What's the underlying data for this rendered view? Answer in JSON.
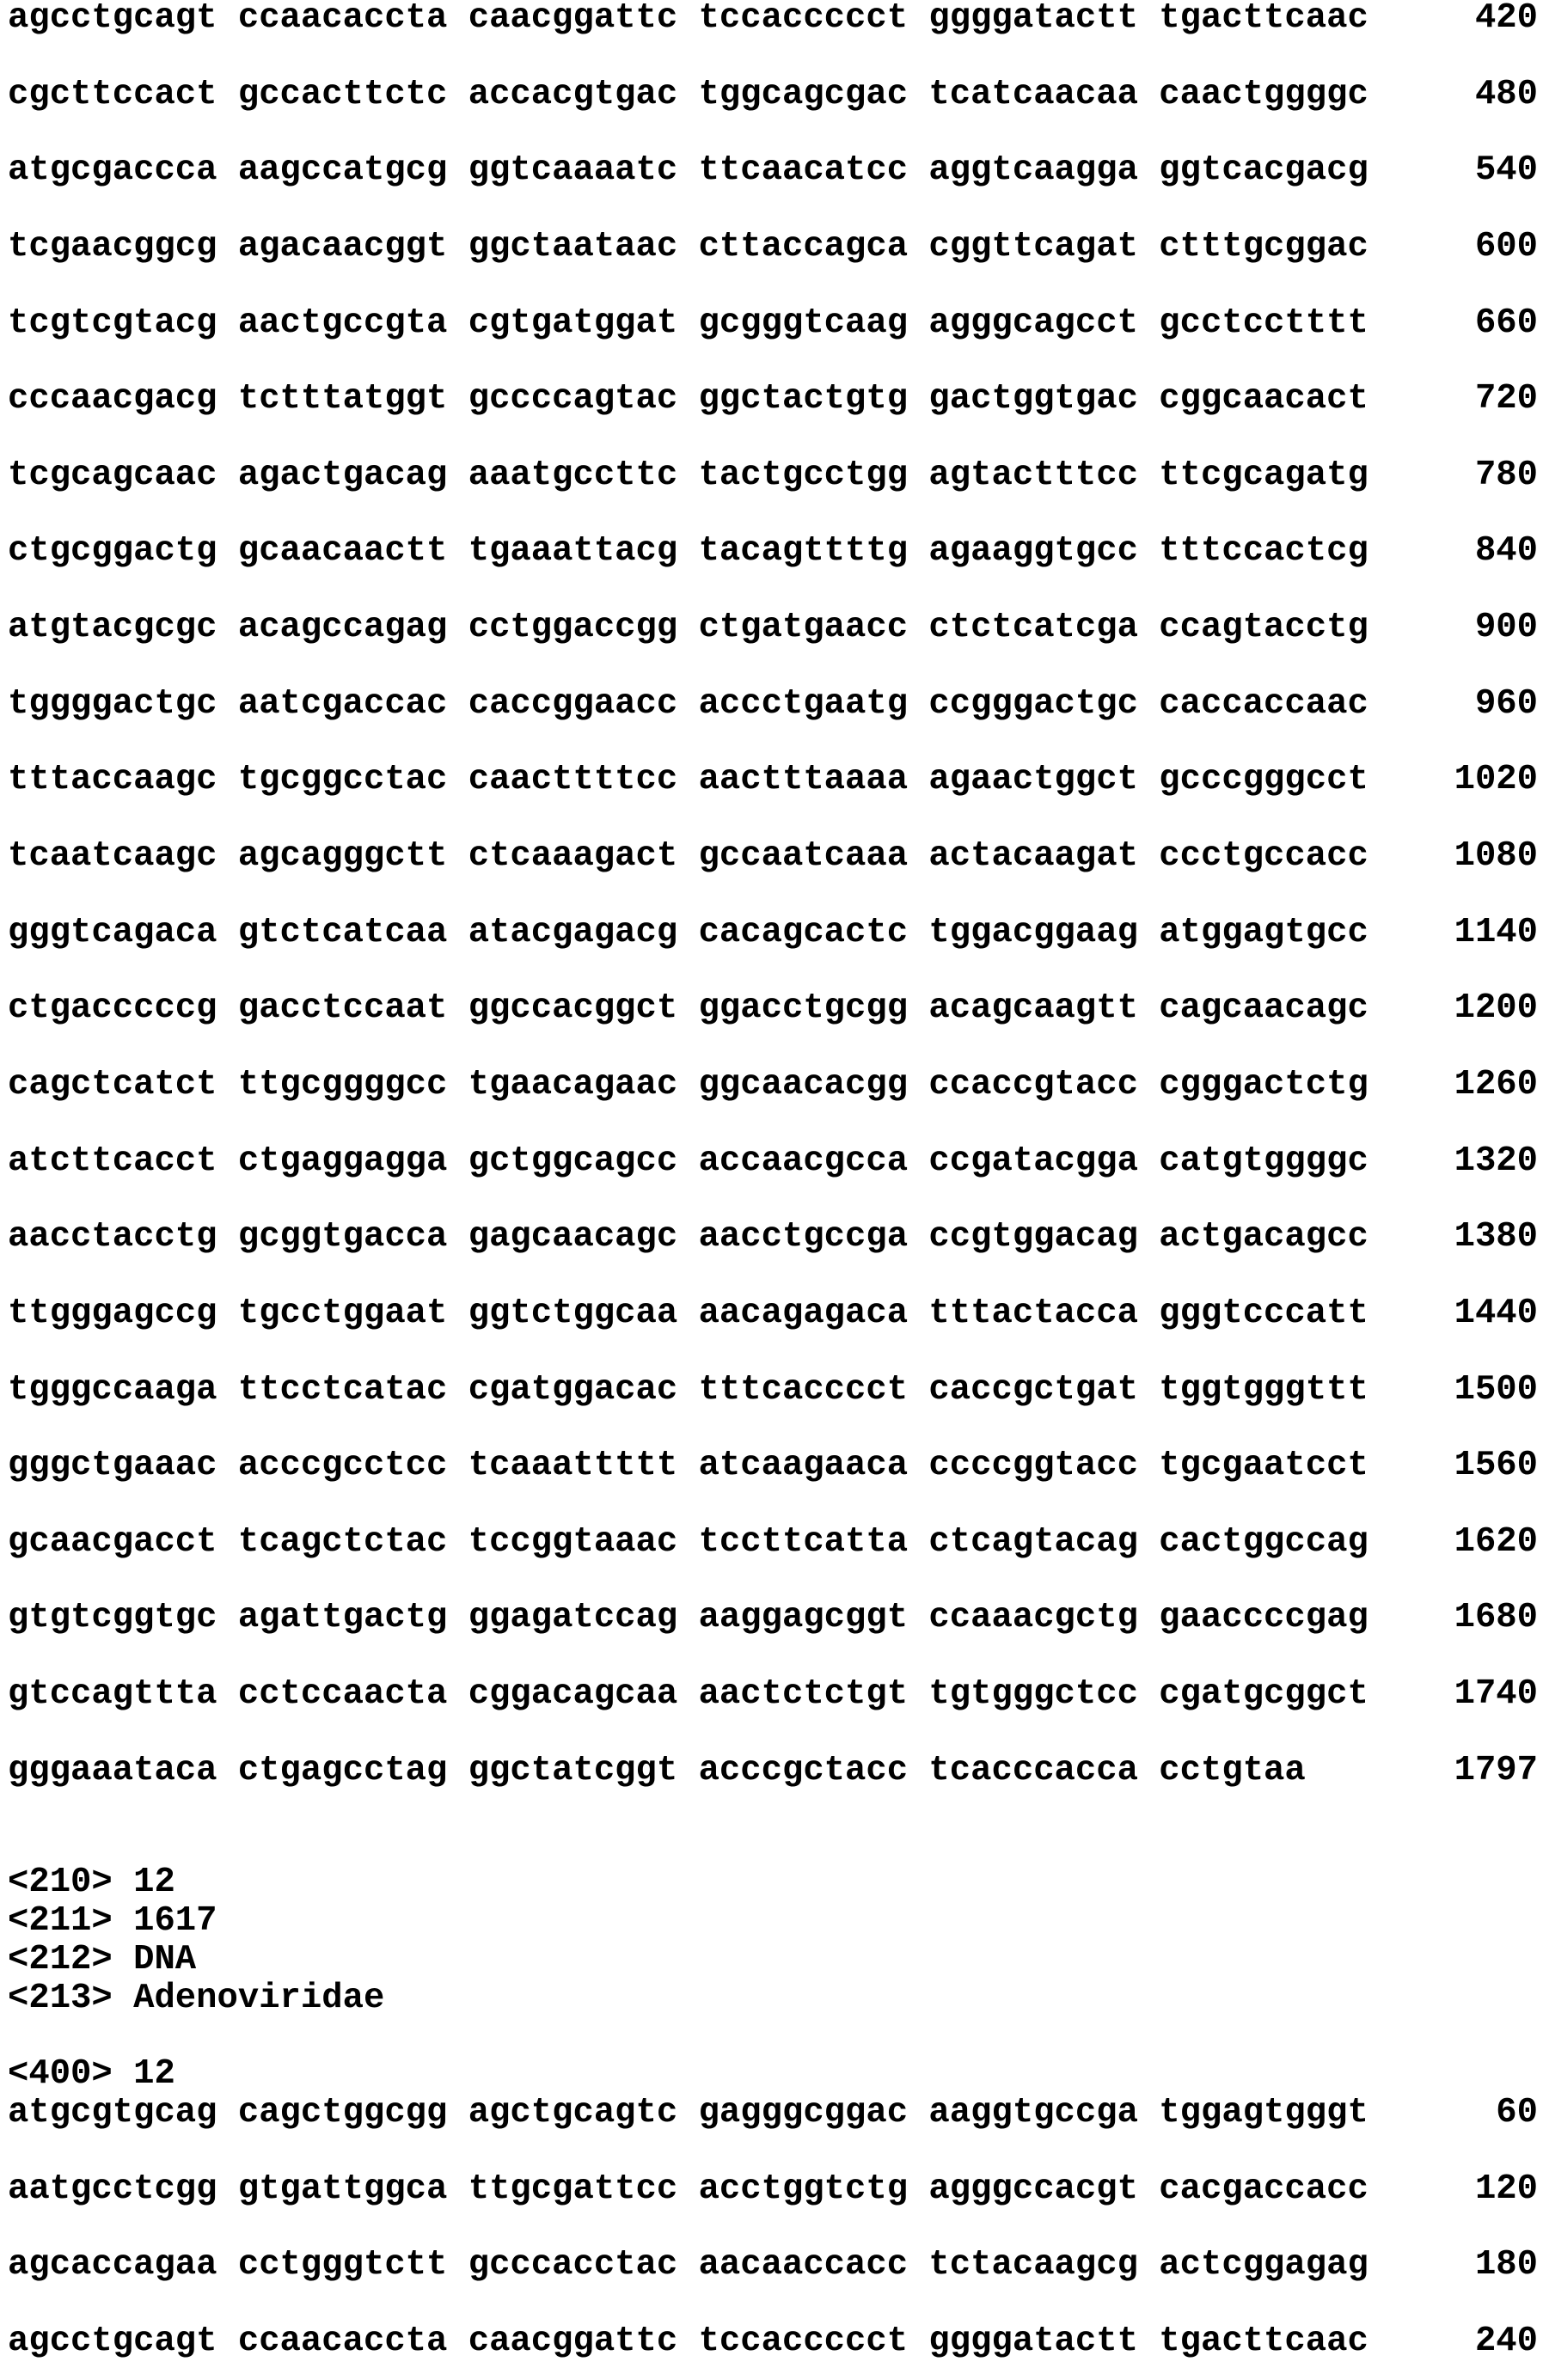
{
  "continued_sequence": {
    "rows": [
      {
        "seq": "agcctgcagt ccaacaccta caacggattc tccaccccct ggggatactt tgacttcaac",
        "num": "420"
      },
      {
        "seq": "cgcttccact gccacttctc accacgtgac tggcagcgac tcatcaacaa caactggggc",
        "num": "480"
      },
      {
        "seq": "atgcgaccca aagccatgcg ggtcaaaatc ttcaacatcc aggtcaagga ggtcacgacg",
        "num": "540"
      },
      {
        "seq": "tcgaacggcg agacaacggt ggctaataac cttaccagca cggttcagat ctttgcggac",
        "num": "600"
      },
      {
        "seq": "tcgtcgtacg aactgccgta cgtgatggat gcgggtcaag agggcagcct gcctcctttt",
        "num": "660"
      },
      {
        "seq": "cccaacgacg tctttatggt gccccagtac ggctactgtg gactggtgac cggcaacact",
        "num": "720"
      },
      {
        "seq": "tcgcagcaac agactgacag aaatgccttc tactgcctgg agtactttcc ttcgcagatg",
        "num": "780"
      },
      {
        "seq": "ctgcggactg gcaacaactt tgaaattacg tacagttttg agaaggtgcc tttccactcg",
        "num": "840"
      },
      {
        "seq": "atgtacgcgc acagccagag cctggaccgg ctgatgaacc ctctcatcga ccagtacctg",
        "num": "900"
      },
      {
        "seq": "tggggactgc aatcgaccac caccggaacc accctgaatg ccgggactgc caccaccaac",
        "num": "960"
      },
      {
        "seq": "tttaccaagc tgcggcctac caacttttcc aactttaaaa agaactggct gcccgggcct",
        "num": "1020"
      },
      {
        "seq": "tcaatcaagc agcagggctt ctcaaagact gccaatcaaa actacaagat ccctgccacc",
        "num": "1080"
      },
      {
        "seq": "gggtcagaca gtctcatcaa atacgagacg cacagcactc tggacggaag atggagtgcc",
        "num": "1140"
      },
      {
        "seq": "ctgacccccg gacctccaat ggccacggct ggacctgcgg acagcaagtt cagcaacagc",
        "num": "1200"
      },
      {
        "seq": "cagctcatct ttgcggggcc tgaacagaac ggcaacacgg ccaccgtacc cgggactctg",
        "num": "1260"
      },
      {
        "seq": "atcttcacct ctgaggagga gctggcagcc accaacgcca ccgatacgga catgtggggc",
        "num": "1320"
      },
      {
        "seq": "aacctacctg gcggtgacca gagcaacagc aacctgccga ccgtggacag actgacagcc",
        "num": "1380"
      },
      {
        "seq": "ttgggagccg tgcctggaat ggtctggcaa aacagagaca tttactacca gggtcccatt",
        "num": "1440"
      },
      {
        "seq": "tgggccaaga ttcctcatac cgatggacac tttcacccct caccgctgat tggtgggttt",
        "num": "1500"
      },
      {
        "seq": "gggctgaaac acccgcctcc tcaaattttt atcaagaaca ccccggtacc tgcgaatcct",
        "num": "1560"
      },
      {
        "seq": "gcaacgacct tcagctctac tccggtaaac tccttcatta ctcagtacag cactggccag",
        "num": "1620"
      },
      {
        "seq": "gtgtcggtgc agattgactg ggagatccag aaggagcggt ccaaacgctg gaaccccgag",
        "num": "1680"
      },
      {
        "seq": "gtccagttta cctccaacta cggacagcaa aactctctgt tgtgggctcc cgatgcggct",
        "num": "1740"
      },
      {
        "seq": "gggaaataca ctgagcctag ggctatcggt acccgctacc tcacccacca cctgtaa",
        "num": "1797"
      }
    ]
  },
  "entry": {
    "f210": "<210> 12",
    "f211": "<211> 1617",
    "f212": "<212> DNA",
    "f213": "<213> Adenoviridae",
    "f400": "<400> 12",
    "rows": [
      {
        "seq": "atgcgtgcag cagctggcgg agctgcagtc gagggcggac aaggtgccga tggagtgggt",
        "num": "60"
      },
      {
        "seq": "aatgcctcgg gtgattggca ttgcgattcc acctggtctg agggccacgt cacgaccacc",
        "num": "120"
      },
      {
        "seq": "agcaccagaa cctgggtctt gcccacctac aacaaccacc tctacaagcg actcggagag",
        "num": "180"
      },
      {
        "seq": "agcctgcagt ccaacaccta caacggattc tccaccccct ggggatactt tgacttcaac",
        "num": "240"
      }
    ]
  }
}
